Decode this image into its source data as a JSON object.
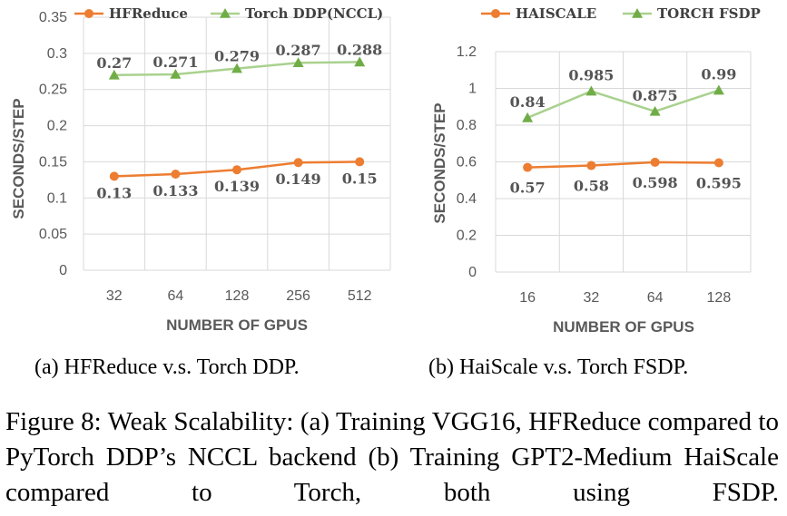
{
  "chart_data": [
    {
      "type": "line",
      "ylabel": "SECONDS/STEP",
      "xlabel": "NUMBER OF GPUS",
      "categories": [
        "32",
        "64",
        "128",
        "256",
        "512"
      ],
      "ylim": [
        0,
        0.35
      ],
      "yticks": [
        0,
        0.05,
        0.1,
        0.15,
        0.2,
        0.25,
        0.3,
        0.35
      ],
      "ytick_labels": [
        "0",
        "0.05",
        "0.1",
        "0.15",
        "0.2",
        "0.25",
        "0.3",
        "0.35"
      ],
      "grid": true,
      "legend_position": "top",
      "series": [
        {
          "name": "HFReduce",
          "color": "#ED7D31",
          "marker": "circle",
          "values": [
            0.13,
            0.133,
            0.139,
            0.149,
            0.15
          ],
          "labels": [
            "0.13",
            "0.133",
            "0.139",
            "0.149",
            "0.15"
          ],
          "label_position": "below"
        },
        {
          "name": "Torch DDP(NCCL)",
          "color": "#A9D18E",
          "marker": "triangle",
          "values": [
            0.27,
            0.271,
            0.279,
            0.287,
            0.288
          ],
          "labels": [
            "0.27",
            "0.271",
            "0.279",
            "0.287",
            "0.288"
          ],
          "label_position": "above"
        }
      ]
    },
    {
      "type": "line",
      "ylabel": "SECONDS/STEP",
      "xlabel": "NUMBER OF GPUS",
      "categories": [
        "16",
        "32",
        "64",
        "128"
      ],
      "ylim": [
        0,
        1.2
      ],
      "yticks": [
        0,
        0.2,
        0.4,
        0.6,
        0.8,
        1,
        1.2
      ],
      "ytick_labels": [
        "0",
        "0.2",
        "0.4",
        "0.6",
        "0.8",
        "1",
        "1.2"
      ],
      "grid": true,
      "legend_position": "top",
      "series": [
        {
          "name": "HAISCALE",
          "color": "#ED7D31",
          "marker": "circle",
          "values": [
            0.57,
            0.58,
            0.598,
            0.595
          ],
          "labels": [
            "0.57",
            "0.58",
            "0.598",
            "0.595"
          ],
          "label_position": "below"
        },
        {
          "name": "TORCH FSDP",
          "color": "#A9D18E",
          "marker": "triangle",
          "values": [
            0.84,
            0.985,
            0.875,
            0.99
          ],
          "labels": [
            "0.84",
            "0.985",
            "0.875",
            "0.99"
          ],
          "label_position": "above"
        }
      ]
    }
  ],
  "subcaptions": {
    "a": "(a) HFReduce v.s. Torch DDP.",
    "b": "(b) HaiScale v.s. Torch FSDP."
  },
  "caption": "Figure 8: Weak Scalability: (a) Training VGG16, HFReduce compared to PyTorch DDP’s NCCL backend (b) Training GPT2-Medium HaiScale compared to Torch, both using FSDP."
}
